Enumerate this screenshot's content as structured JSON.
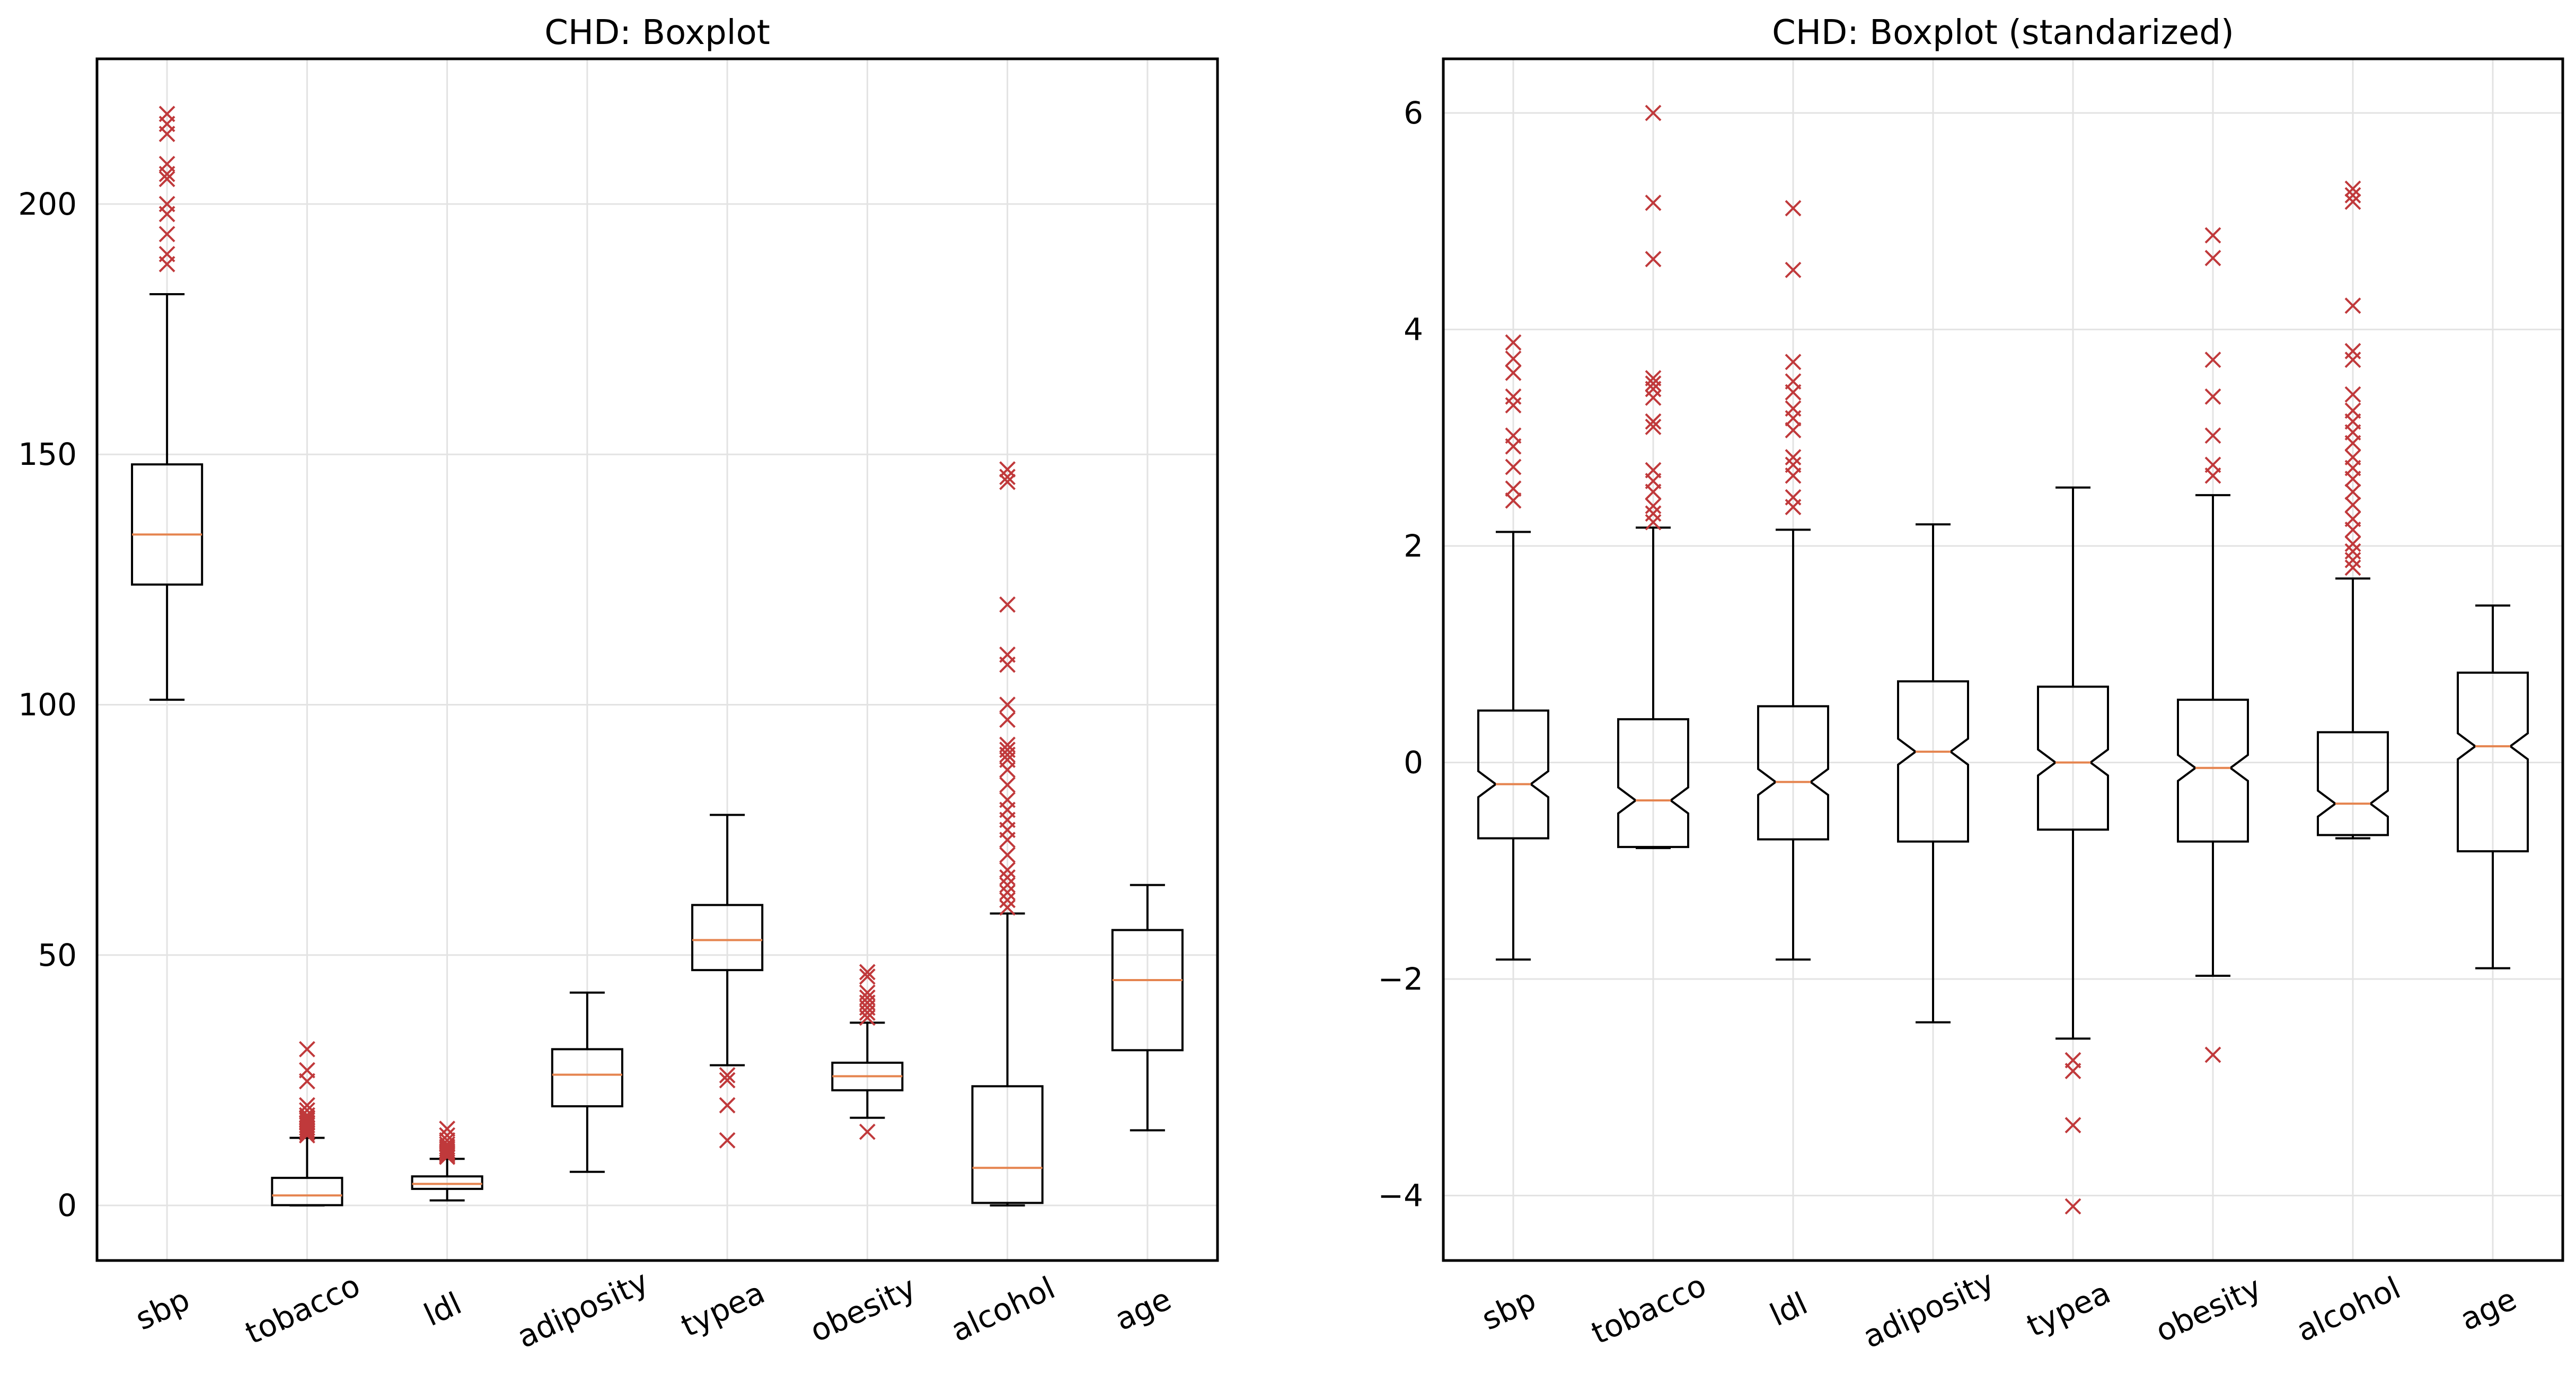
{
  "colors": {
    "box": "#000000",
    "median": "#e5844f",
    "outlier": "#c0393b",
    "grid": "#e3e3e3",
    "frame": "#000000"
  },
  "chart_data": [
    {
      "type": "boxplot",
      "title": "CHD: Boxplot",
      "xlabel": "",
      "ylabel": "",
      "notched": false,
      "grid": true,
      "ylim": [
        -11,
        229
      ],
      "yticks": [
        0,
        50,
        100,
        150,
        200
      ],
      "ytick_labels": [
        "0",
        "50",
        "100",
        "150",
        "200"
      ],
      "categories": [
        "sbp",
        "tobacco",
        "ldl",
        "adiposity",
        "typea",
        "obesity",
        "alcohol",
        "age"
      ],
      "boxes": [
        {
          "q1": 124,
          "median": 134,
          "q3": 148,
          "whislo": 101,
          "whishi": 182,
          "fliers": [
            188,
            190,
            194,
            198,
            200,
            205,
            206,
            208,
            214,
            216,
            218
          ]
        },
        {
          "q1": 0.05,
          "median": 2,
          "q3": 5.5,
          "whislo": 0,
          "whishi": 13.5,
          "fliers": [
            14,
            14.5,
            15,
            15.5,
            16,
            16.5,
            17,
            17.5,
            18,
            19,
            20,
            24.8,
            27,
            31.2
          ]
        },
        {
          "q1": 3.3,
          "median": 4.3,
          "q3": 5.8,
          "whislo": 1,
          "whishi": 9.3,
          "fliers": [
            9.7,
            10,
            10.3,
            10.6,
            10.9,
            11.3,
            11.7,
            12.2,
            13,
            14,
            15.3
          ]
        },
        {
          "q1": 19.8,
          "median": 26.1,
          "q3": 31.2,
          "whislo": 6.7,
          "whishi": 42.5,
          "fliers": []
        },
        {
          "q1": 47,
          "median": 53,
          "q3": 60,
          "whislo": 28,
          "whishi": 78,
          "fliers": [
            13,
            20,
            25,
            26
          ]
        },
        {
          "q1": 23,
          "median": 25.8,
          "q3": 28.5,
          "whislo": 17.5,
          "whishi": 36.5,
          "fliers": [
            14.7,
            37.5,
            38.5,
            39.5,
            40.5,
            41.5,
            42.5,
            45.7,
            46.6
          ]
        },
        {
          "q1": 0.5,
          "median": 7.5,
          "q3": 23.8,
          "whislo": 0,
          "whishi": 58.3,
          "fliers": [
            59.5,
            61,
            62.5,
            64,
            65.5,
            67,
            70,
            73,
            75,
            77,
            79,
            81,
            84,
            87,
            89,
            90,
            91,
            92,
            97,
            100,
            108,
            110,
            120,
            144.5,
            145.5,
            147
          ]
        },
        {
          "q1": 31,
          "median": 45,
          "q3": 55,
          "whislo": 15,
          "whishi": 64,
          "fliers": []
        }
      ]
    },
    {
      "type": "boxplot",
      "title": "CHD: Boxplot (standarized)",
      "xlabel": "",
      "ylabel": "",
      "notched": true,
      "grid": true,
      "ylim": [
        -4.6,
        6.5
      ],
      "yticks": [
        -4,
        -2,
        0,
        2,
        4,
        6
      ],
      "ytick_labels": [
        "−4",
        "−2",
        "0",
        "2",
        "4",
        "6"
      ],
      "categories": [
        "sbp",
        "tobacco",
        "ldl",
        "adiposity",
        "typea",
        "obesity",
        "alcohol",
        "age"
      ],
      "boxes": [
        {
          "q1": -0.7,
          "median": -0.2,
          "q3": 0.48,
          "notchlo": -0.32,
          "notchhi": -0.08,
          "whislo": -1.82,
          "whishi": 2.13,
          "fliers": [
            2.42,
            2.53,
            2.73,
            2.92,
            3.02,
            3.3,
            3.38,
            3.6,
            3.73,
            3.88
          ]
        },
        {
          "q1": -0.78,
          "median": -0.35,
          "q3": 0.4,
          "notchlo": -0.47,
          "notchhi": -0.23,
          "whislo": -0.79,
          "whishi": 2.17,
          "fliers": [
            2.22,
            2.3,
            2.37,
            2.5,
            2.6,
            2.7,
            3.1,
            3.15,
            3.37,
            3.45,
            3.5,
            3.55,
            4.65,
            5.17,
            6.0
          ]
        },
        {
          "q1": -0.71,
          "median": -0.18,
          "q3": 0.52,
          "notchlo": -0.3,
          "notchhi": -0.06,
          "whislo": -1.82,
          "whishi": 2.15,
          "fliers": [
            2.36,
            2.45,
            2.65,
            2.75,
            2.82,
            3.07,
            3.18,
            3.27,
            3.42,
            3.52,
            3.7,
            4.55,
            5.12
          ]
        },
        {
          "q1": -0.73,
          "median": 0.1,
          "q3": 0.75,
          "notchlo": -0.02,
          "notchhi": 0.22,
          "whislo": -2.4,
          "whishi": 2.2,
          "fliers": []
        },
        {
          "q1": -0.62,
          "median": 0.0,
          "q3": 0.7,
          "notchlo": -0.12,
          "notchhi": 0.12,
          "whislo": -2.55,
          "whishi": 2.54,
          "fliers": [
            -2.75,
            -2.85,
            -3.35,
            -4.1
          ]
        },
        {
          "q1": -0.73,
          "median": -0.05,
          "q3": 0.58,
          "notchlo": -0.17,
          "notchhi": 0.07,
          "whislo": -1.97,
          "whishi": 2.47,
          "fliers": [
            -2.7,
            2.65,
            2.75,
            3.02,
            3.38,
            3.72,
            4.66,
            4.87
          ]
        },
        {
          "q1": -0.67,
          "median": -0.38,
          "q3": 0.28,
          "notchlo": -0.5,
          "notchhi": -0.26,
          "whislo": -0.7,
          "whishi": 1.7,
          "fliers": [
            1.8,
            1.87,
            1.95,
            2.02,
            2.15,
            2.25,
            2.38,
            2.5,
            2.62,
            2.72,
            2.82,
            2.95,
            3.05,
            3.15,
            3.25,
            3.4,
            3.72,
            3.8,
            4.22,
            5.18,
            5.24,
            5.3
          ]
        },
        {
          "q1": -0.82,
          "median": 0.15,
          "q3": 0.83,
          "notchlo": 0.03,
          "notchhi": 0.27,
          "whislo": -1.9,
          "whishi": 1.45,
          "fliers": []
        }
      ]
    }
  ]
}
